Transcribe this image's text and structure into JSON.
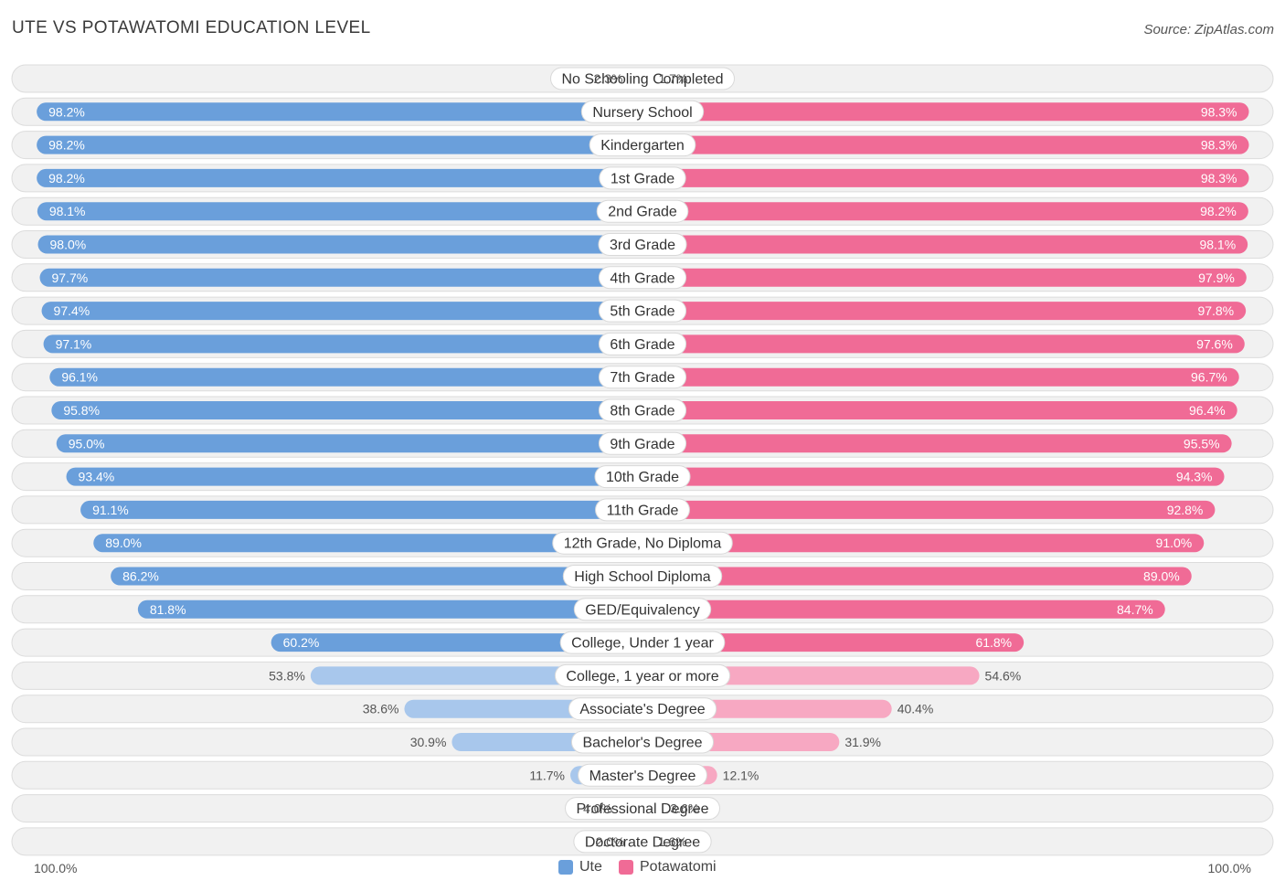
{
  "header": {
    "title": "UTE VS POTAWATOMI EDUCATION LEVEL",
    "source": "Source: ZipAtlas.com"
  },
  "colors": {
    "left_strong": "#6a9fdb",
    "left_light": "#a8c7ec",
    "right_strong": "#f06b96",
    "right_light": "#f7a8c2",
    "row_bg": "#f1f1f1",
    "row_border": "#dcdcdc"
  },
  "legend": {
    "left_name": "Ute",
    "right_name": "Potawatomi",
    "left_axis": "100.0%",
    "right_axis": "100.0%"
  },
  "chart_data": {
    "type": "bar",
    "orientation": "horizontal-diverging",
    "xlim": [
      0,
      100
    ],
    "categories": [
      "No Schooling Completed",
      "Nursery School",
      "Kindergarten",
      "1st Grade",
      "2nd Grade",
      "3rd Grade",
      "4th Grade",
      "5th Grade",
      "6th Grade",
      "7th Grade",
      "8th Grade",
      "9th Grade",
      "10th Grade",
      "11th Grade",
      "12th Grade, No Diploma",
      "High School Diploma",
      "GED/Equivalency",
      "College, Under 1 year",
      "College, 1 year or more",
      "Associate's Degree",
      "Bachelor's Degree",
      "Master's Degree",
      "Professional Degree",
      "Doctorate Degree"
    ],
    "series": [
      {
        "name": "Ute",
        "values": [
          2.3,
          98.2,
          98.2,
          98.2,
          98.1,
          98.0,
          97.7,
          97.4,
          97.1,
          96.1,
          95.8,
          95.0,
          93.4,
          91.1,
          89.0,
          86.2,
          81.8,
          60.2,
          53.8,
          38.6,
          30.9,
          11.7,
          4.0,
          2.0
        ],
        "labels": [
          "2.3%",
          "98.2%",
          "98.2%",
          "98.2%",
          "98.1%",
          "98.0%",
          "97.7%",
          "97.4%",
          "97.1%",
          "96.1%",
          "95.8%",
          "95.0%",
          "93.4%",
          "91.1%",
          "89.0%",
          "86.2%",
          "81.8%",
          "60.2%",
          "53.8%",
          "38.6%",
          "30.9%",
          "11.7%",
          "4.0%",
          "2.0%"
        ]
      },
      {
        "name": "Potawatomi",
        "values": [
          1.7,
          98.3,
          98.3,
          98.3,
          98.2,
          98.1,
          97.9,
          97.8,
          97.6,
          96.7,
          96.4,
          95.5,
          94.3,
          92.8,
          91.0,
          89.0,
          84.7,
          61.8,
          54.6,
          40.4,
          31.9,
          12.1,
          3.6,
          1.6
        ],
        "labels": [
          "1.7%",
          "98.3%",
          "98.3%",
          "98.3%",
          "98.2%",
          "98.1%",
          "97.9%",
          "97.8%",
          "97.6%",
          "96.7%",
          "96.4%",
          "95.5%",
          "94.3%",
          "92.8%",
          "91.0%",
          "89.0%",
          "84.7%",
          "61.8%",
          "54.6%",
          "40.4%",
          "31.9%",
          "12.1%",
          "3.6%",
          "1.6%"
        ]
      }
    ]
  }
}
